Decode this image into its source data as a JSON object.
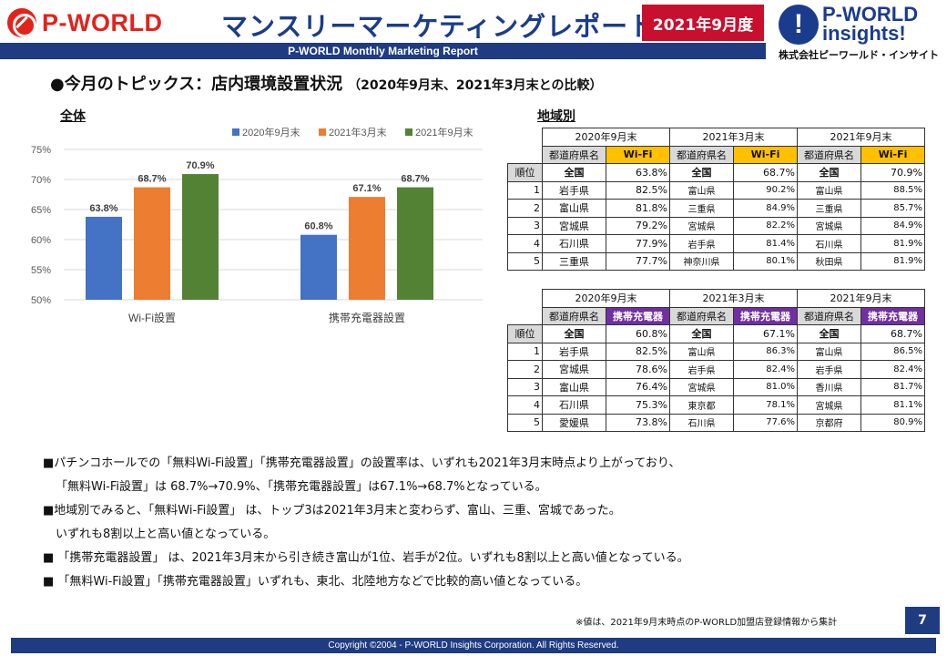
{
  "header": {
    "left_logo_text": "P-WORLD",
    "title": "マンスリーマーケティングレポート",
    "period_badge": "2021年9月度",
    "subtitle_bar": "P-WORLD Monthly Marketing Report",
    "right_logo": {
      "line1": "P-WORLD",
      "line2": "insights!",
      "company": "株式会社ピーワールド・インサイト"
    }
  },
  "section": {
    "heading": "●今月のトピックス：店内環境設置状況",
    "sub": "（2020年9月末、2021年3月末との比較）",
    "label_all": "全体",
    "label_region": "地域別"
  },
  "chart_data": {
    "type": "bar",
    "categories": [
      "Wi-Fi設置",
      "携帯充電器設置"
    ],
    "series": [
      {
        "name": "2020年9月末",
        "values": [
          63.8,
          60.8
        ],
        "labels": [
          "63.8%",
          "60.8%"
        ],
        "color": "#4472c4"
      },
      {
        "name": "2021年3月末",
        "values": [
          68.7,
          67.1
        ],
        "labels": [
          "68.7%",
          "67.1%"
        ],
        "color": "#ed7d31"
      },
      {
        "name": "2021年9月末",
        "values": [
          70.9,
          68.7
        ],
        "labels": [
          "70.9%",
          "68.7%"
        ],
        "color": "#548235"
      }
    ],
    "yticks": [
      "50%",
      "55%",
      "60%",
      "65%",
      "70%",
      "75%"
    ],
    "ylim": [
      50,
      75
    ],
    "grid": true,
    "legend": "top"
  },
  "tables": {
    "wifi": {
      "periods": [
        "2020年9月末",
        "2021年3月末",
        "2021年9月末"
      ],
      "col_pref": "都道府県名",
      "col_metric": "Wi-Fi",
      "rank_header": "順位",
      "national": [
        {
          "name": "全国",
          "value": "63.8%"
        },
        {
          "name": "全国",
          "value": "68.7%"
        },
        {
          "name": "全国",
          "value": "70.9%"
        }
      ],
      "rows": [
        {
          "rank": "1",
          "cells": [
            {
              "name": "岩手県",
              "value": "82.5%"
            },
            {
              "name": "富山県",
              "value": "90.2%"
            },
            {
              "name": "富山県",
              "value": "88.5%"
            }
          ]
        },
        {
          "rank": "2",
          "cells": [
            {
              "name": "富山県",
              "value": "81.8%"
            },
            {
              "name": "三重県",
              "value": "84.9%"
            },
            {
              "name": "三重県",
              "value": "85.7%"
            }
          ]
        },
        {
          "rank": "3",
          "cells": [
            {
              "name": "宮城県",
              "value": "79.2%"
            },
            {
              "name": "宮城県",
              "value": "82.2%"
            },
            {
              "name": "宮城県",
              "value": "84.9%"
            }
          ]
        },
        {
          "rank": "4",
          "cells": [
            {
              "name": "石川県",
              "value": "77.9%"
            },
            {
              "name": "岩手県",
              "value": "81.4%"
            },
            {
              "name": "石川県",
              "value": "81.9%"
            }
          ]
        },
        {
          "rank": "5",
          "cells": [
            {
              "name": "三重県",
              "value": "77.7%"
            },
            {
              "name": "神奈川県",
              "value": "80.1%"
            },
            {
              "name": "秋田県",
              "value": "81.9%"
            }
          ]
        }
      ]
    },
    "charger": {
      "periods": [
        "2020年9月末",
        "2021年3月末",
        "2021年9月末"
      ],
      "col_pref": "都道府県名",
      "col_metric": "携帯充電器",
      "rank_header": "順位",
      "national": [
        {
          "name": "全国",
          "value": "60.8%"
        },
        {
          "name": "全国",
          "value": "67.1%"
        },
        {
          "name": "全国",
          "value": "68.7%"
        }
      ],
      "rows": [
        {
          "rank": "1",
          "cells": [
            {
              "name": "岩手県",
              "value": "82.5%"
            },
            {
              "name": "富山県",
              "value": "86.3%"
            },
            {
              "name": "富山県",
              "value": "86.5%"
            }
          ]
        },
        {
          "rank": "2",
          "cells": [
            {
              "name": "宮城県",
              "value": "78.6%"
            },
            {
              "name": "岩手県",
              "value": "82.4%"
            },
            {
              "name": "岩手県",
              "value": "82.4%"
            }
          ]
        },
        {
          "rank": "3",
          "cells": [
            {
              "name": "富山県",
              "value": "76.4%"
            },
            {
              "name": "宮城県",
              "value": "81.0%"
            },
            {
              "name": "香川県",
              "value": "81.7%"
            }
          ]
        },
        {
          "rank": "4",
          "cells": [
            {
              "name": "石川県",
              "value": "75.3%"
            },
            {
              "name": "東京都",
              "value": "78.1%"
            },
            {
              "name": "宮城県",
              "value": "81.1%"
            }
          ]
        },
        {
          "rank": "5",
          "cells": [
            {
              "name": "愛媛県",
              "value": "73.8%"
            },
            {
              "name": "石川県",
              "value": "77.6%"
            },
            {
              "name": "京都府",
              "value": "80.9%"
            }
          ]
        }
      ]
    }
  },
  "comments": [
    "■パチンコホールでの「無料Wi-Fi設置」「携帯充電器設置」の設置率は、いずれも2021年3月末時点より上がっており、",
    "「無料Wi-Fi設置」は 68.7%→70.9%、「携帯充電器設置」は67.1%→68.7%となっている。",
    "■地域別でみると、「無料Wi-Fi設置」 は、トップ3は2021年3月末と変わらず、富山、三重、宮城であった。",
    "いずれも8割以上と高い値となっている。",
    "■ 「携帯充電器設置」 は、2021年3月末から引き続き富山が1位、岩手が2位。いずれも8割以上と高い値となっている。",
    "■ 「無料Wi-Fi設置」「携帯充電器設置」いずれも、東北、北陸地方などで比較的高い値となっている。"
  ],
  "note": "※値は、2021年9月末時点のP-WORLD加盟店登録情報から集計",
  "page_number": "7",
  "footer": "Copyright ©2004 - P-WORLD Insights Corporation. All Rights Reserved."
}
